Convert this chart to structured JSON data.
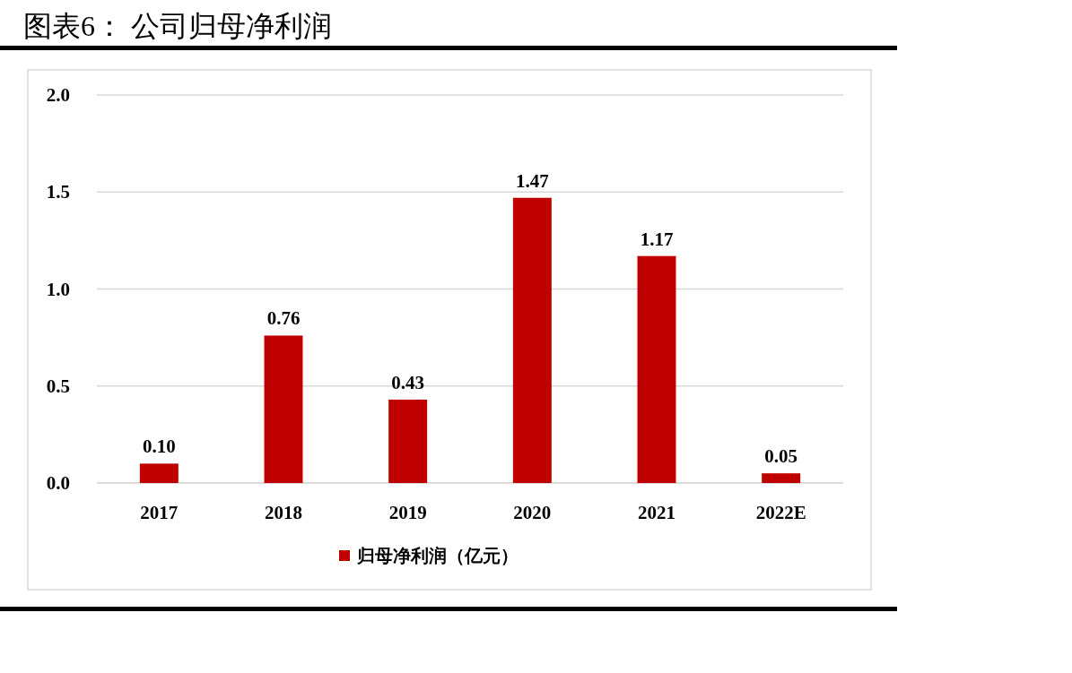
{
  "chart_data": {
    "type": "bar",
    "title": "图表6：  公司归母净利润",
    "categories": [
      "2017",
      "2018",
      "2019",
      "2020",
      "2021",
      "2022E"
    ],
    "series": [
      {
        "name": "归母净利润（亿元）",
        "color": "#c00000",
        "values": [
          0.1,
          0.76,
          0.43,
          1.47,
          1.17,
          0.05
        ],
        "value_labels": [
          "0.10",
          "0.76",
          "0.43",
          "1.47",
          "1.17",
          "0.05"
        ]
      }
    ],
    "ylim": [
      0,
      2
    ],
    "yticks": [
      {
        "value": 0,
        "label": "0.0"
      },
      {
        "value": 0.5,
        "label": "0.5"
      },
      {
        "value": 1,
        "label": "1.0"
      },
      {
        "value": 1.5,
        "label": "1.5"
      },
      {
        "value": 2,
        "label": "2.0"
      }
    ],
    "grid": "y",
    "legend": "bottom"
  }
}
